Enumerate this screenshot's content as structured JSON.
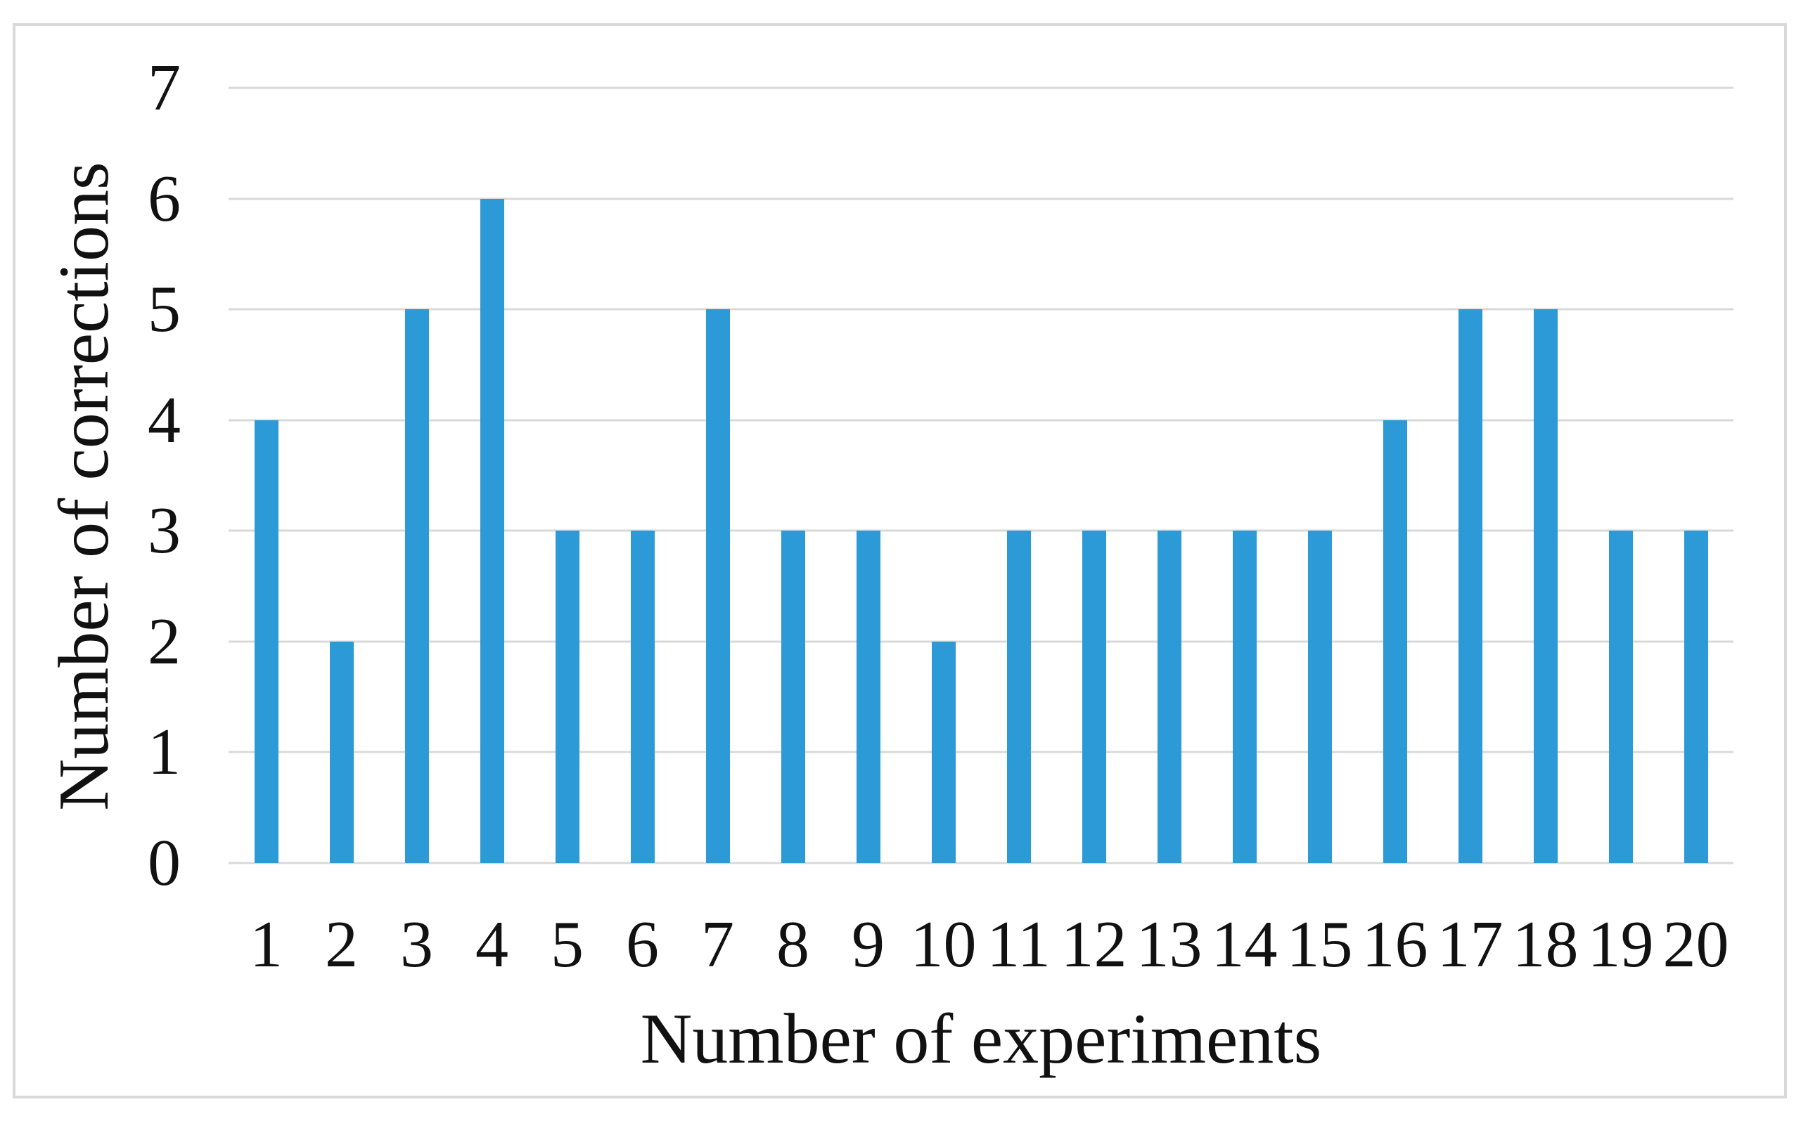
{
  "figure": {
    "background_color": "#ffffff",
    "frame_border_color": "#d9d9d9"
  },
  "chart_data": {
    "type": "bar",
    "title": "",
    "categories": [
      "1",
      "2",
      "3",
      "4",
      "5",
      "6",
      "7",
      "8",
      "9",
      "10",
      "11",
      "12",
      "13",
      "14",
      "15",
      "16",
      "17",
      "18",
      "19",
      "20"
    ],
    "values": [
      4,
      2,
      5,
      6,
      3,
      3,
      5,
      3,
      3,
      2,
      3,
      3,
      3,
      3,
      3,
      4,
      5,
      5,
      3,
      3
    ],
    "xlabel": "Number of experiments",
    "ylabel": "Number of corrections",
    "ylim": [
      0,
      7
    ],
    "yticks": [
      "0",
      "1",
      "2",
      "3",
      "4",
      "5",
      "6",
      "7"
    ],
    "grid": "horizontal gridlines at each integer, light gray",
    "legend_position": "none",
    "bar_color": "#2b9ad6",
    "gridline_color": "#d9d9d9",
    "text_color": "#111111"
  }
}
